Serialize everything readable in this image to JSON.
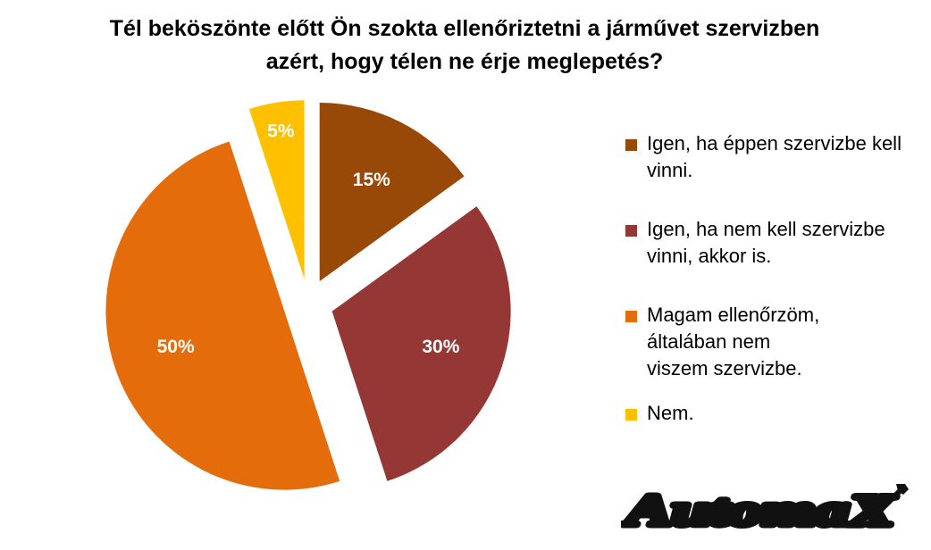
{
  "header": {
    "title_line1": "Tél beköszönte előtt Ön szokta ellenőriztetni a járművet szervizben",
    "title_line2": "azért, hogy télen ne érje meglepetés?"
  },
  "chart_data": {
    "type": "pie",
    "title": "Tél beköszönte előtt Ön szokta ellenőriztetni a járművet szervizben azért, hogy télen ne érje meglepetés?",
    "categories": [
      "Igen, ha éppen szervizbe kell vinni.",
      "Igen, ha nem kell szervizbe vinni, akkor is.",
      "Magam ellenőrzöm, általában nem viszem szervizbe.",
      "Nem."
    ],
    "values": [
      15,
      30,
      50,
      5
    ],
    "data_labels": [
      "15%",
      "30%",
      "50%",
      "5%"
    ],
    "colors": [
      "#984807",
      "#953735",
      "#E46C0A",
      "#FFC000"
    ],
    "exploded": true,
    "legend_position": "right",
    "legend": [
      "Igen, ha éppen szervizbe kell\nvinni.",
      "Igen, ha nem kell szervizbe\nvinni, akkor is.",
      "Magam ellenőrzöm,\náltalában nem\nviszem szervizbe.",
      "Nem."
    ]
  },
  "logo": {
    "text": "AutomaX"
  }
}
